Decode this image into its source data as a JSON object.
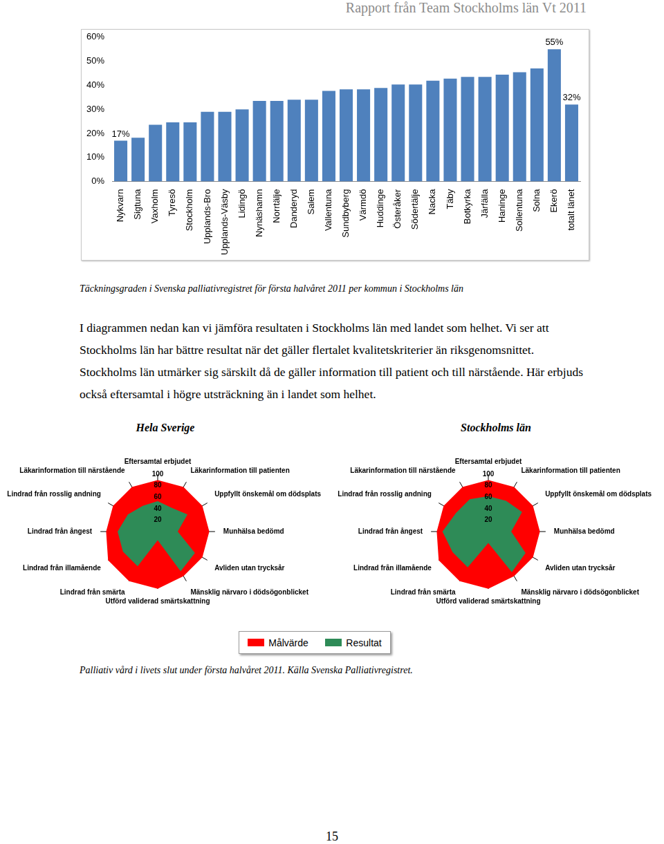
{
  "header": "Rapport från Team Stockholms län Vt 2011",
  "chart_data": [
    {
      "type": "bar",
      "categories": [
        "Nykvarn",
        "Sigtuna",
        "Vaxholm",
        "Tyresö",
        "Stockholm",
        "Upplands-Bro",
        "Upplands-Väsby",
        "Lidingö",
        "Nynäshamn",
        "Norrtälje",
        "Danderyd",
        "Salem",
        "Vallentuna",
        "Sundbyberg",
        "Värmdö",
        "Huddinge",
        "Österåker",
        "Södertälje",
        "Nacka",
        "Täby",
        "Botkyrka",
        "Järfälla",
        "Haninge",
        "Sollentuna",
        "Solna",
        "Ekerö",
        "totalt länet"
      ],
      "values": [
        17,
        18.2,
        23.6,
        24.6,
        24.6,
        29,
        29,
        30,
        33.5,
        33.5,
        34,
        34,
        37.7,
        38.3,
        38.3,
        38.9,
        40.3,
        40.3,
        41.9,
        42.8,
        43.5,
        43.5,
        44.4,
        45.4,
        47,
        55,
        32
      ],
      "value_labels": [
        "17%",
        null,
        null,
        null,
        null,
        null,
        null,
        null,
        null,
        null,
        null,
        null,
        null,
        null,
        null,
        null,
        null,
        null,
        null,
        null,
        null,
        null,
        null,
        null,
        null,
        "55%",
        "32%"
      ],
      "data_labels": true,
      "color": "#4f81bd",
      "ylim": [
        0,
        60
      ],
      "yticks": [
        {
          "value": 0,
          "label": "0%"
        },
        {
          "value": 10,
          "label": "10%"
        },
        {
          "value": 20,
          "label": "20%"
        },
        {
          "value": 30,
          "label": "30%"
        },
        {
          "value": 40,
          "label": "40%"
        },
        {
          "value": 50,
          "label": "50%"
        },
        {
          "value": 60,
          "label": "60%"
        }
      ],
      "grid": false
    },
    {
      "type": "radar",
      "title": "Hela Sverige",
      "categories": [
        "Eftersamtal erbjudet",
        "Läkarinformation till patienten",
        "Uppfyllt önskemål om dödsplats",
        "Munhälsa bedömd",
        "Avliden utan trycksår",
        "Mänsklig närvaro i dödsögonblicket",
        "Utförd validerad smärtskattning",
        "Lindrad från smärta",
        "Lindrad från illamående",
        "Lindrad från ångest",
        "Lindrad från rosslig andning",
        "Läkarinformation till närstående"
      ],
      "series": [
        {
          "name": "Målvärde",
          "color": "#ff0000",
          "values": [
            90,
            90,
            90,
            90,
            90,
            90,
            100,
            100,
            100,
            90,
            90,
            90
          ]
        },
        {
          "name": "Resultat",
          "color": "#2e8b57",
          "values": [
            53,
            48,
            60,
            35,
            75,
            80,
            15,
            70,
            70,
            70,
            60,
            52
          ]
        }
      ],
      "ylim": [
        0,
        100
      ],
      "yticks": [
        0,
        20,
        40,
        60,
        80,
        100
      ],
      "legend": "bottom"
    },
    {
      "type": "radar",
      "title": "Stockholms län",
      "categories": [
        "Eftersamtal erbjudet",
        "Läkarinformation till patienten",
        "Uppfyllt önskemål om dödsplats",
        "Munhälsa bedömd",
        "Avliden utan trycksår",
        "Mänsklig närvaro i dödsögonblicket",
        "Utförd validerad smärtskattning",
        "Lindrad från smärta",
        "Lindrad från illamående",
        "Lindrad från ångest",
        "Lindrad från rosslig andning",
        "Läkarinformation till närstående"
      ],
      "series": [
        {
          "name": "Målvärde",
          "color": "#ff0000",
          "values": [
            90,
            90,
            90,
            90,
            90,
            90,
            100,
            100,
            100,
            90,
            90,
            90
          ]
        },
        {
          "name": "Resultat",
          "color": "#2e8b57",
          "values": [
            62,
            62,
            68,
            40,
            75,
            82,
            20,
            72,
            72,
            80,
            65,
            65
          ]
        }
      ],
      "ylim": [
        0,
        100
      ],
      "yticks": [
        0,
        20,
        40,
        60,
        80,
        100
      ]
    }
  ],
  "figure_captions": [
    "Täckningsgraden i Svenska palliativregistret för första halvåret 2011 per kommun i Stockholms län",
    "Palliativ vård i livets slut under första halvåret 2011. Källa Svenska Palliativregistret."
  ],
  "paragraph": "I diagrammen nedan kan vi jämföra resultaten i Stockholms län med landet som helhet. Vi ser att Stockholms län har bättre resultat när det gäller flertalet kvalitetskriterier än riksgenomsnittet. Stockholms län utmärker sig särskilt då de gäller information till patient och till närstående. Här erbjuds också eftersamtal i högre utsträckning än i landet som helhet.",
  "page_number": 15
}
